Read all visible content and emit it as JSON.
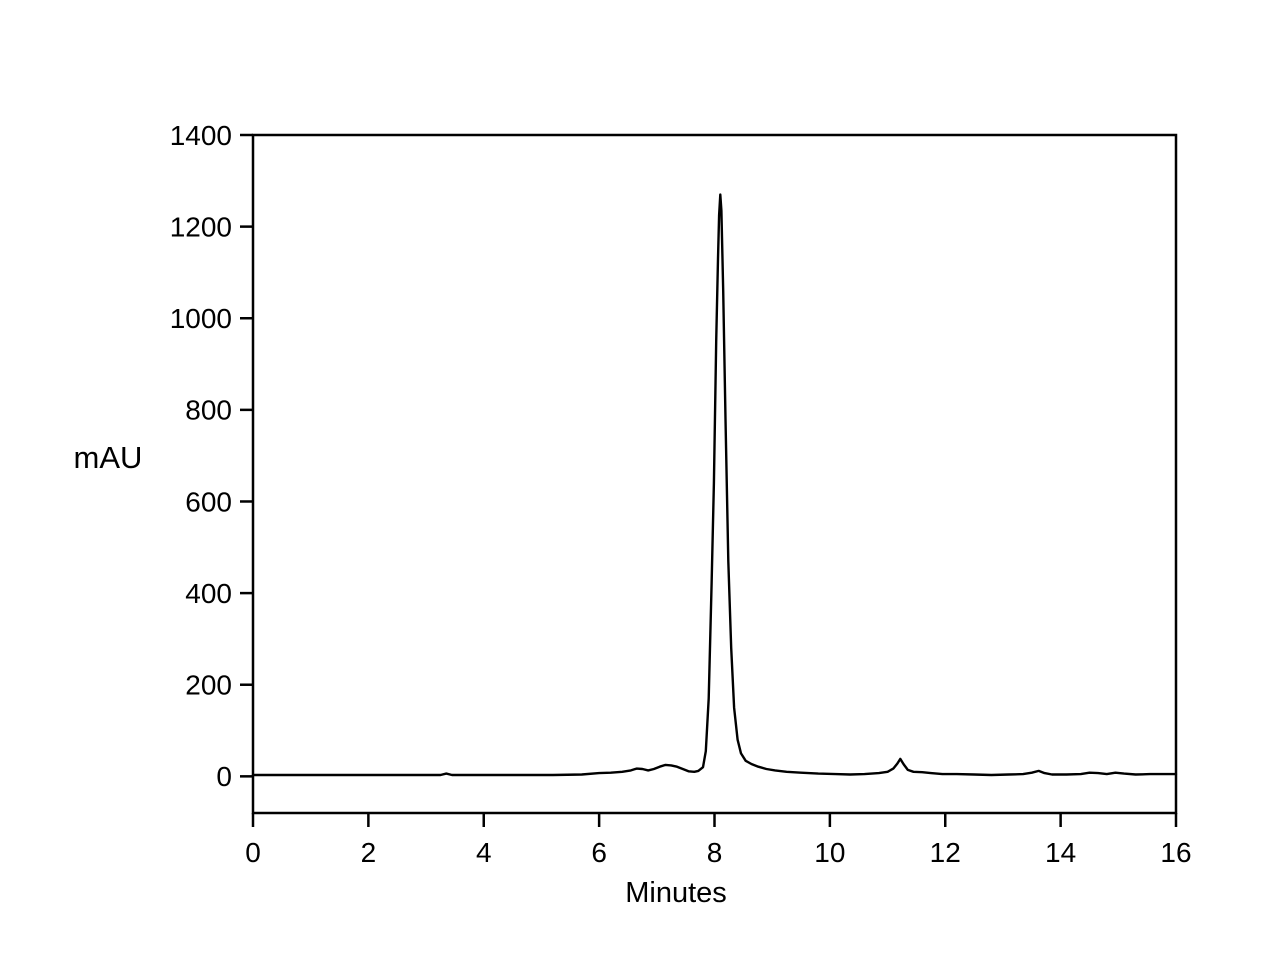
{
  "chart_data": {
    "type": "line",
    "title": "",
    "xlabel": "Minutes",
    "ylabel": "mAU",
    "xlim": [
      0,
      16
    ],
    "ylim": [
      -80,
      1400
    ],
    "x_ticks": [
      0,
      2,
      4,
      6,
      8,
      10,
      12,
      14,
      16
    ],
    "y_ticks": [
      0,
      200,
      400,
      600,
      800,
      1000,
      1200,
      1400
    ],
    "grid": false,
    "legend": false,
    "frame": "full-box",
    "colors": {
      "trace": "#000000",
      "axis": "#000000",
      "background": "#ffffff"
    },
    "annotations": {
      "main_peak": {
        "x_minutes": 8.1,
        "height_mAU": 1270
      },
      "minor_peaks": [
        {
          "x_minutes": 6.65,
          "height_mAU": 17
        },
        {
          "x_minutes": 7.15,
          "height_mAU": 25
        },
        {
          "x_minutes": 11.2,
          "height_mAU": 38
        },
        {
          "x_minutes": 13.6,
          "height_mAU": 12
        }
      ]
    },
    "series": [
      {
        "name": "detector-signal",
        "points": [
          [
            0.0,
            3
          ],
          [
            0.6,
            3
          ],
          [
            1.2,
            3
          ],
          [
            1.8,
            3
          ],
          [
            2.4,
            3
          ],
          [
            3.0,
            3
          ],
          [
            3.25,
            3
          ],
          [
            3.35,
            6
          ],
          [
            3.45,
            3
          ],
          [
            4.0,
            3
          ],
          [
            4.6,
            3
          ],
          [
            5.2,
            3
          ],
          [
            5.7,
            4
          ],
          [
            6.0,
            7
          ],
          [
            6.2,
            8
          ],
          [
            6.4,
            10
          ],
          [
            6.55,
            13
          ],
          [
            6.65,
            17
          ],
          [
            6.75,
            16
          ],
          [
            6.85,
            13
          ],
          [
            6.95,
            16
          ],
          [
            7.05,
            21
          ],
          [
            7.15,
            25
          ],
          [
            7.25,
            24
          ],
          [
            7.35,
            21
          ],
          [
            7.45,
            16
          ],
          [
            7.55,
            11
          ],
          [
            7.65,
            10
          ],
          [
            7.72,
            12
          ],
          [
            7.8,
            20
          ],
          [
            7.85,
            55
          ],
          [
            7.9,
            170
          ],
          [
            7.95,
            420
          ],
          [
            7.99,
            640
          ],
          [
            8.03,
            950
          ],
          [
            8.06,
            1130
          ],
          [
            8.08,
            1225
          ],
          [
            8.1,
            1270
          ],
          [
            8.12,
            1235
          ],
          [
            8.15,
            1060
          ],
          [
            8.19,
            780
          ],
          [
            8.24,
            470
          ],
          [
            8.29,
            280
          ],
          [
            8.34,
            150
          ],
          [
            8.4,
            80
          ],
          [
            8.46,
            50
          ],
          [
            8.54,
            34
          ],
          [
            8.64,
            27
          ],
          [
            8.76,
            21
          ],
          [
            8.9,
            16
          ],
          [
            9.05,
            13
          ],
          [
            9.25,
            10
          ],
          [
            9.5,
            8
          ],
          [
            9.8,
            6
          ],
          [
            10.1,
            5
          ],
          [
            10.35,
            4
          ],
          [
            10.6,
            5
          ],
          [
            10.85,
            7
          ],
          [
            11.0,
            10
          ],
          [
            11.1,
            17
          ],
          [
            11.17,
            28
          ],
          [
            11.22,
            38
          ],
          [
            11.28,
            26
          ],
          [
            11.35,
            14
          ],
          [
            11.45,
            10
          ],
          [
            11.6,
            9
          ],
          [
            11.75,
            7
          ],
          [
            11.95,
            5
          ],
          [
            12.2,
            5
          ],
          [
            12.5,
            4
          ],
          [
            12.8,
            3
          ],
          [
            13.1,
            4
          ],
          [
            13.35,
            5
          ],
          [
            13.5,
            8
          ],
          [
            13.62,
            12
          ],
          [
            13.72,
            7
          ],
          [
            13.85,
            4
          ],
          [
            14.1,
            4
          ],
          [
            14.35,
            5
          ],
          [
            14.5,
            8
          ],
          [
            14.65,
            7
          ],
          [
            14.8,
            5
          ],
          [
            14.95,
            8
          ],
          [
            15.1,
            6
          ],
          [
            15.3,
            4
          ],
          [
            15.55,
            5
          ],
          [
            15.8,
            5
          ],
          [
            16.0,
            5
          ]
        ]
      }
    ]
  }
}
